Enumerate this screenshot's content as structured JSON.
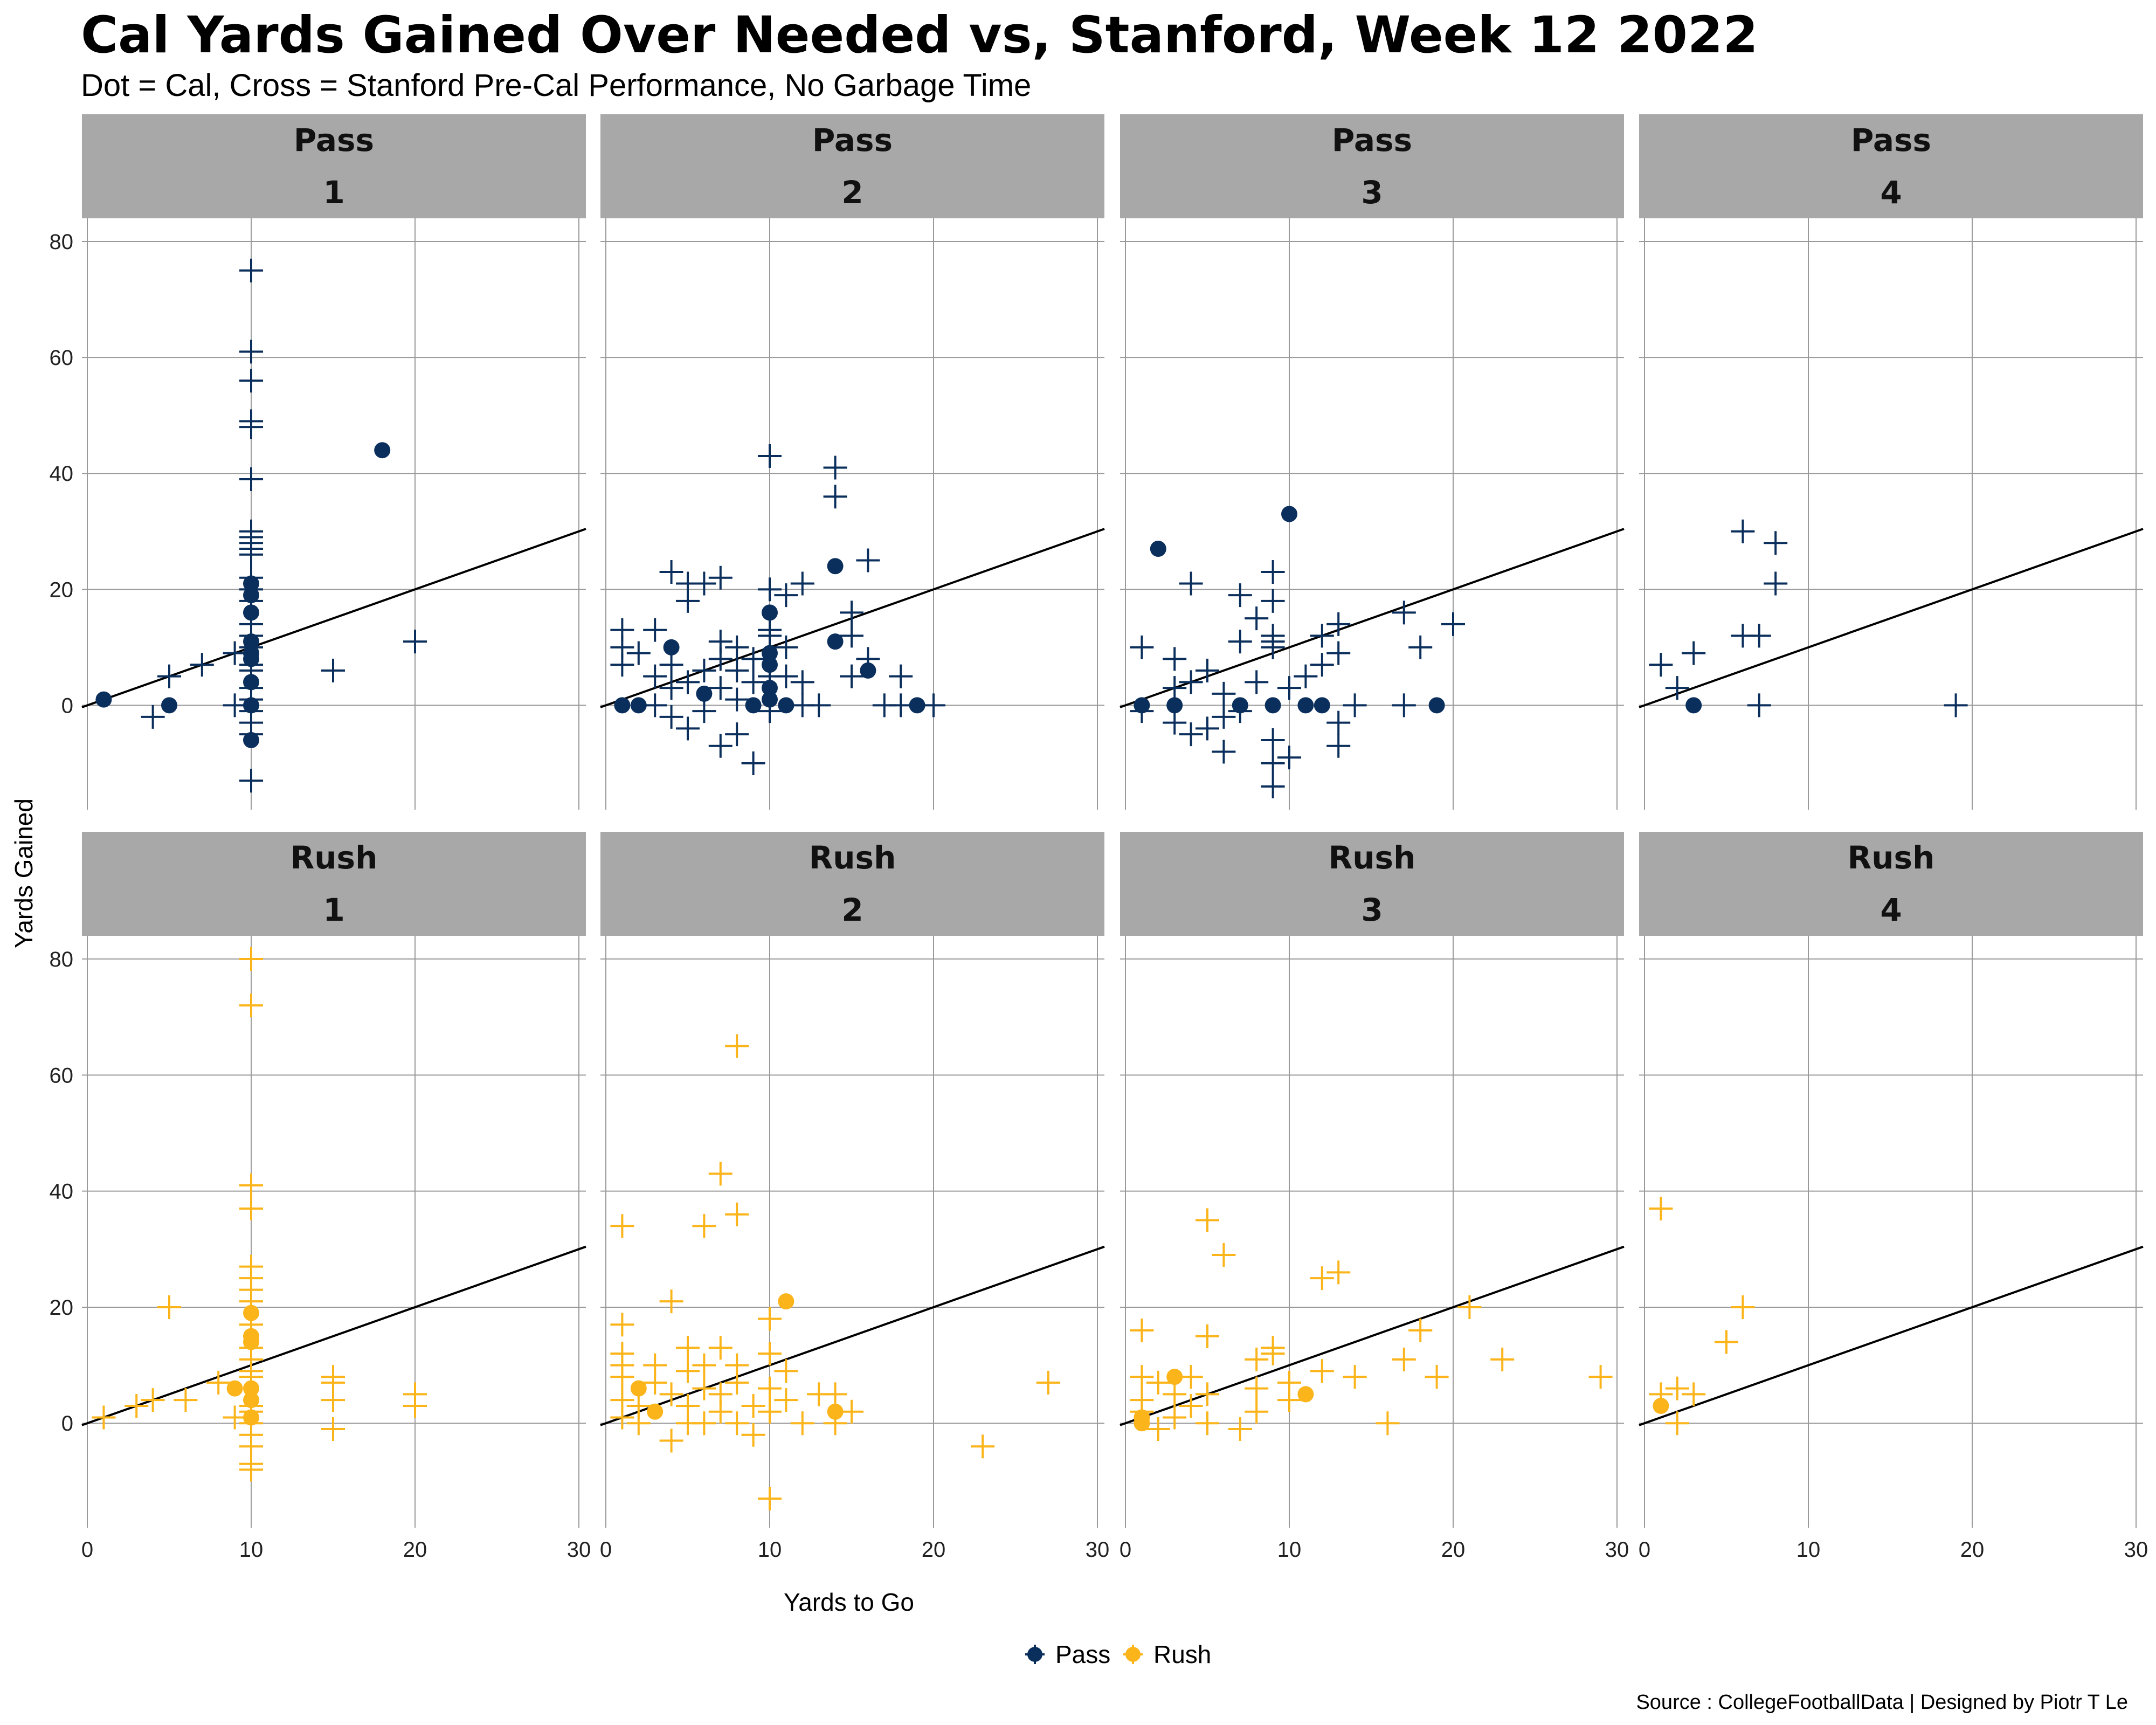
{
  "chart_data": {
    "type": "scatter",
    "title": "Cal Yards Gained Over Needed vs, Stanford, Week 12 2022",
    "subtitle": "Dot = Cal, Cross = Stanford Pre-Cal Performance, No Garbage Time",
    "xlabel": "Yards to Go",
    "ylabel": "Yards Gained",
    "caption": "Source : CollegeFootballData | Designed by Piotr T Le",
    "xlim": [
      0,
      30
    ],
    "ylim": [
      -18,
      84
    ],
    "x_ticks": [
      0,
      10,
      20,
      30
    ],
    "y_ticks": [
      0,
      20,
      40,
      60,
      80
    ],
    "reference_line": "y = x",
    "legend": {
      "placement": "bottom",
      "entries": [
        {
          "label": "Pass",
          "color": "#0b2f5c"
        },
        {
          "label": "Rush",
          "color": "#fbb41a"
        }
      ]
    },
    "colors": {
      "Pass": "#0b2f5c",
      "Rush": "#fbb41a"
    },
    "panels": [
      {
        "play_type": "Pass",
        "down": "1",
        "cal": [
          [
            1,
            1
          ],
          [
            5,
            0
          ],
          [
            10,
            21
          ],
          [
            10,
            19
          ],
          [
            10,
            16
          ],
          [
            10,
            11
          ],
          [
            10,
            9
          ],
          [
            10,
            8
          ],
          [
            10,
            4
          ],
          [
            10,
            0
          ],
          [
            10,
            -6
          ],
          [
            18,
            44
          ]
        ],
        "stanford": [
          [
            4,
            -2
          ],
          [
            5,
            5
          ],
          [
            7,
            7
          ],
          [
            9,
            9
          ],
          [
            9,
            0
          ],
          [
            10,
            75
          ],
          [
            10,
            61
          ],
          [
            10,
            56
          ],
          [
            10,
            49
          ],
          [
            10,
            48
          ],
          [
            10,
            39
          ],
          [
            10,
            30
          ],
          [
            10,
            29
          ],
          [
            10,
            28
          ],
          [
            10,
            27
          ],
          [
            10,
            26
          ],
          [
            10,
            22
          ],
          [
            10,
            20
          ],
          [
            10,
            18
          ],
          [
            10,
            14
          ],
          [
            10,
            12
          ],
          [
            10,
            10
          ],
          [
            10,
            7
          ],
          [
            10,
            6
          ],
          [
            10,
            3
          ],
          [
            10,
            1
          ],
          [
            10,
            -1
          ],
          [
            10,
            -3
          ],
          [
            10,
            -5
          ],
          [
            10,
            -13
          ],
          [
            15,
            6
          ],
          [
            20,
            11
          ]
        ]
      },
      {
        "play_type": "Pass",
        "down": "2",
        "cal": [
          [
            1,
            0
          ],
          [
            2,
            0
          ],
          [
            4,
            10
          ],
          [
            6,
            2
          ],
          [
            9,
            0
          ],
          [
            10,
            16
          ],
          [
            10,
            9
          ],
          [
            10,
            7
          ],
          [
            10,
            3
          ],
          [
            10,
            1
          ],
          [
            11,
            0
          ],
          [
            14,
            24
          ],
          [
            14,
            11
          ],
          [
            16,
            6
          ],
          [
            19,
            0
          ]
        ],
        "stanford": [
          [
            1,
            13
          ],
          [
            1,
            10
          ],
          [
            1,
            7
          ],
          [
            2,
            9
          ],
          [
            3,
            0
          ],
          [
            3,
            5
          ],
          [
            3,
            13
          ],
          [
            4,
            23
          ],
          [
            4,
            -2
          ],
          [
            4,
            3
          ],
          [
            4,
            7
          ],
          [
            5,
            21
          ],
          [
            5,
            18
          ],
          [
            5,
            4
          ],
          [
            5,
            -4
          ],
          [
            6,
            21
          ],
          [
            6,
            6
          ],
          [
            6,
            -1
          ],
          [
            7,
            22
          ],
          [
            7,
            11
          ],
          [
            7,
            -7
          ],
          [
            7,
            3
          ],
          [
            7,
            8
          ],
          [
            8,
            10
          ],
          [
            8,
            -5
          ],
          [
            8,
            1
          ],
          [
            8,
            6
          ],
          [
            9,
            -10
          ],
          [
            9,
            4
          ],
          [
            9,
            8
          ],
          [
            10,
            43
          ],
          [
            10,
            20
          ],
          [
            10,
            13
          ],
          [
            10,
            12
          ],
          [
            10,
            5
          ],
          [
            10,
            -1
          ],
          [
            11,
            19
          ],
          [
            11,
            10
          ],
          [
            11,
            5
          ],
          [
            12,
            21
          ],
          [
            12,
            4
          ],
          [
            12,
            0
          ],
          [
            13,
            0
          ],
          [
            14,
            41
          ],
          [
            14,
            36
          ],
          [
            15,
            16
          ],
          [
            15,
            12
          ],
          [
            15,
            5
          ],
          [
            16,
            25
          ],
          [
            16,
            8
          ],
          [
            17,
            0
          ],
          [
            18,
            5
          ],
          [
            18,
            0
          ],
          [
            20,
            0
          ]
        ]
      },
      {
        "play_type": "Pass",
        "down": "3",
        "cal": [
          [
            1,
            0
          ],
          [
            2,
            27
          ],
          [
            3,
            0
          ],
          [
            7,
            0
          ],
          [
            9,
            0
          ],
          [
            10,
            33
          ],
          [
            11,
            0
          ],
          [
            12,
            0
          ],
          [
            19,
            0
          ]
        ],
        "stanford": [
          [
            1,
            10
          ],
          [
            1,
            -1
          ],
          [
            3,
            8
          ],
          [
            3,
            3
          ],
          [
            3,
            -3
          ],
          [
            4,
            21
          ],
          [
            4,
            -5
          ],
          [
            4,
            4
          ],
          [
            5,
            6
          ],
          [
            5,
            -4
          ],
          [
            6,
            2
          ],
          [
            6,
            -2
          ],
          [
            6,
            -8
          ],
          [
            7,
            19
          ],
          [
            7,
            11
          ],
          [
            7,
            -1
          ],
          [
            8,
            15
          ],
          [
            8,
            4
          ],
          [
            9,
            23
          ],
          [
            9,
            18
          ],
          [
            9,
            12
          ],
          [
            9,
            11
          ],
          [
            9,
            10
          ],
          [
            9,
            -6
          ],
          [
            9,
            -10
          ],
          [
            9,
            -14
          ],
          [
            10,
            -9
          ],
          [
            10,
            3
          ],
          [
            11,
            5
          ],
          [
            12,
            12
          ],
          [
            12,
            7
          ],
          [
            13,
            14
          ],
          [
            13,
            9
          ],
          [
            13,
            -3
          ],
          [
            13,
            -7
          ],
          [
            14,
            0
          ],
          [
            17,
            16
          ],
          [
            17,
            0
          ],
          [
            18,
            10
          ],
          [
            20,
            14
          ]
        ]
      },
      {
        "play_type": "Pass",
        "down": "4",
        "cal": [
          [
            3,
            0
          ]
        ],
        "stanford": [
          [
            1,
            7
          ],
          [
            2,
            3
          ],
          [
            3,
            9
          ],
          [
            6,
            30
          ],
          [
            6,
            12
          ],
          [
            7,
            12
          ],
          [
            7,
            0
          ],
          [
            8,
            28
          ],
          [
            8,
            21
          ],
          [
            19,
            0
          ]
        ]
      },
      {
        "play_type": "Rush",
        "down": "1",
        "cal": [
          [
            9,
            6
          ],
          [
            10,
            19
          ],
          [
            10,
            15
          ],
          [
            10,
            14
          ],
          [
            10,
            6
          ],
          [
            10,
            4
          ],
          [
            10,
            1
          ]
        ],
        "stanford": [
          [
            1,
            1
          ],
          [
            3,
            3
          ],
          [
            4,
            4
          ],
          [
            5,
            20
          ],
          [
            6,
            4
          ],
          [
            8,
            7
          ],
          [
            9,
            1
          ],
          [
            10,
            80
          ],
          [
            10,
            72
          ],
          [
            10,
            41
          ],
          [
            10,
            37
          ],
          [
            10,
            27
          ],
          [
            10,
            25
          ],
          [
            10,
            23
          ],
          [
            10,
            21
          ],
          [
            10,
            17
          ],
          [
            10,
            13
          ],
          [
            10,
            11
          ],
          [
            10,
            9
          ],
          [
            10,
            8
          ],
          [
            10,
            3
          ],
          [
            10,
            2
          ],
          [
            10,
            0
          ],
          [
            10,
            -2
          ],
          [
            10,
            -4
          ],
          [
            10,
            -7
          ],
          [
            10,
            -8
          ],
          [
            15,
            8
          ],
          [
            15,
            7
          ],
          [
            15,
            4
          ],
          [
            15,
            -1
          ],
          [
            20,
            5
          ],
          [
            20,
            3
          ]
        ]
      },
      {
        "play_type": "Rush",
        "down": "2",
        "cal": [
          [
            2,
            6
          ],
          [
            3,
            2
          ],
          [
            11,
            21
          ],
          [
            14,
            2
          ]
        ],
        "stanford": [
          [
            1,
            34
          ],
          [
            1,
            17
          ],
          [
            1,
            12
          ],
          [
            1,
            10
          ],
          [
            1,
            8
          ],
          [
            1,
            4
          ],
          [
            1,
            1
          ],
          [
            2,
            3
          ],
          [
            2,
            0
          ],
          [
            3,
            10
          ],
          [
            3,
            7
          ],
          [
            4,
            21
          ],
          [
            4,
            -3
          ],
          [
            4,
            5
          ],
          [
            5,
            13
          ],
          [
            5,
            9
          ],
          [
            5,
            3
          ],
          [
            5,
            0
          ],
          [
            6,
            34
          ],
          [
            6,
            10
          ],
          [
            6,
            6
          ],
          [
            6,
            0
          ],
          [
            7,
            43
          ],
          [
            7,
            13
          ],
          [
            7,
            5
          ],
          [
            7,
            2
          ],
          [
            8,
            65
          ],
          [
            8,
            36
          ],
          [
            8,
            10
          ],
          [
            8,
            7
          ],
          [
            8,
            0
          ],
          [
            9,
            -2
          ],
          [
            9,
            3
          ],
          [
            10,
            18
          ],
          [
            10,
            12
          ],
          [
            10,
            6
          ],
          [
            10,
            2
          ],
          [
            10,
            -13
          ],
          [
            11,
            9
          ],
          [
            11,
            4
          ],
          [
            12,
            0
          ],
          [
            13,
            5
          ],
          [
            14,
            5
          ],
          [
            14,
            0
          ],
          [
            15,
            2
          ],
          [
            23,
            -4
          ],
          [
            27,
            7
          ]
        ]
      },
      {
        "play_type": "Rush",
        "down": "3",
        "cal": [
          [
            1,
            0
          ],
          [
            1,
            1
          ],
          [
            3,
            8
          ],
          [
            11,
            5
          ]
        ],
        "stanford": [
          [
            1,
            16
          ],
          [
            1,
            8
          ],
          [
            1,
            4
          ],
          [
            1,
            2
          ],
          [
            2,
            7
          ],
          [
            2,
            -1
          ],
          [
            3,
            5
          ],
          [
            3,
            1
          ],
          [
            4,
            8
          ],
          [
            4,
            3
          ],
          [
            5,
            35
          ],
          [
            5,
            15
          ],
          [
            5,
            5
          ],
          [
            5,
            0
          ],
          [
            6,
            29
          ],
          [
            7,
            -1
          ],
          [
            8,
            11
          ],
          [
            8,
            6
          ],
          [
            8,
            2
          ],
          [
            9,
            13
          ],
          [
            9,
            12
          ],
          [
            10,
            7
          ],
          [
            10,
            4
          ],
          [
            12,
            25
          ],
          [
            12,
            9
          ],
          [
            13,
            26
          ],
          [
            14,
            8
          ],
          [
            16,
            0
          ],
          [
            17,
            11
          ],
          [
            18,
            16
          ],
          [
            19,
            8
          ],
          [
            21,
            20
          ],
          [
            23,
            11
          ],
          [
            29,
            8
          ]
        ]
      },
      {
        "play_type": "Rush",
        "down": "4",
        "cal": [
          [
            1,
            3
          ]
        ],
        "stanford": [
          [
            1,
            37
          ],
          [
            1,
            5
          ],
          [
            2,
            6
          ],
          [
            2,
            0
          ],
          [
            3,
            5
          ],
          [
            5,
            14
          ],
          [
            6,
            20
          ]
        ]
      }
    ]
  }
}
